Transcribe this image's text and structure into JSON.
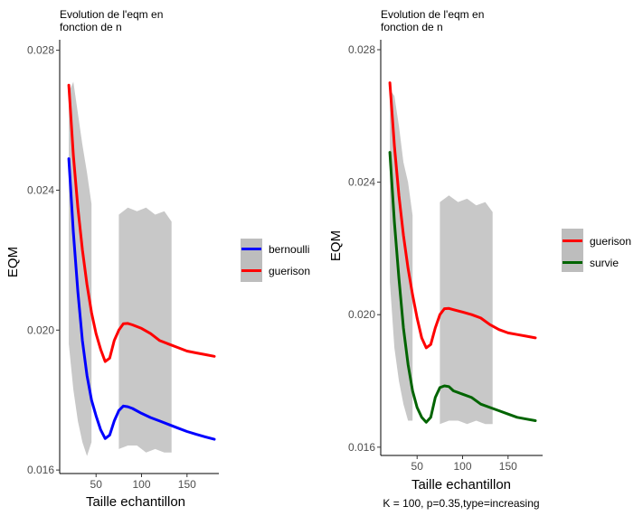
{
  "chart_data": [
    {
      "type": "line",
      "title_lines": [
        "Evolution de l'eqm en",
        "fonction de n"
      ],
      "xlabel": "Taille echantillon",
      "ylabel": "EQM",
      "caption": "",
      "xlim": [
        10,
        185
      ],
      "ylim": [
        0.0159,
        0.0283
      ],
      "x_ticks": [
        50,
        100,
        150
      ],
      "x_tick_labels": [
        "50",
        "100",
        "150"
      ],
      "y_ticks": [
        0.016,
        0.02,
        0.024,
        0.028
      ],
      "y_tick_labels": [
        "0.016",
        "0.020",
        "0.024",
        "0.028"
      ],
      "grid": false,
      "legend_position": "right",
      "series": [
        {
          "name": "bernoulli",
          "color": "#0000ff",
          "x": [
            20,
            25,
            30,
            35,
            40,
            45,
            50,
            55,
            60,
            65,
            70,
            75,
            80,
            85,
            90,
            100,
            110,
            120,
            130,
            140,
            150,
            160,
            170,
            180
          ],
          "y": [
            0.0249,
            0.0228,
            0.0211,
            0.0197,
            0.0187,
            0.018,
            0.01755,
            0.01715,
            0.0169,
            0.017,
            0.0174,
            0.0177,
            0.01783,
            0.01781,
            0.01776,
            0.01762,
            0.0175,
            0.0174,
            0.0173,
            0.0172,
            0.0171,
            0.01702,
            0.01695,
            0.01688
          ]
        },
        {
          "name": "guerison",
          "color": "#ff0000",
          "x": [
            20,
            25,
            30,
            35,
            40,
            45,
            50,
            55,
            60,
            65,
            70,
            75,
            80,
            85,
            90,
            100,
            110,
            120,
            130,
            140,
            150,
            160,
            170,
            180
          ],
          "y": [
            0.027,
            0.025,
            0.0235,
            0.0223,
            0.0213,
            0.0205,
            0.0199,
            0.01945,
            0.0191,
            0.0192,
            0.0197,
            0.02,
            0.02018,
            0.02019,
            0.02015,
            0.02005,
            0.0199,
            0.0197,
            0.0196,
            0.0195,
            0.0194,
            0.01935,
            0.0193,
            0.01925
          ]
        }
      ],
      "confidence_bands": [
        {
          "x": [
            20,
            25,
            30,
            35,
            40,
            45
          ],
          "upper": [
            0.0268,
            0.0271,
            0.0262,
            0.0253,
            0.0245,
            0.0236
          ],
          "lower": [
            0.0196,
            0.0183,
            0.0174,
            0.0168,
            0.0164,
            0.0168
          ]
        },
        {
          "x": [
            75,
            85,
            95,
            105,
            115,
            125,
            133
          ],
          "upper": [
            0.0233,
            0.0235,
            0.0234,
            0.0235,
            0.0233,
            0.0234,
            0.0231
          ],
          "lower": [
            0.0166,
            0.0167,
            0.0167,
            0.0165,
            0.0166,
            0.0165,
            0.0165
          ]
        }
      ]
    },
    {
      "type": "line",
      "title_lines": [
        "Evolution de l'eqm en",
        "fonction de n"
      ],
      "xlabel": "Taille echantillon",
      "ylabel": "EQM",
      "caption": "K = 100, p=0.35,type=increasing",
      "xlim": [
        10,
        188
      ],
      "ylim": [
        0.01575,
        0.0283
      ],
      "x_ticks": [
        50,
        100,
        150
      ],
      "x_tick_labels": [
        "50",
        "100",
        "150"
      ],
      "y_ticks": [
        0.016,
        0.02,
        0.024,
        0.028
      ],
      "y_tick_labels": [
        "0.016",
        "0.020",
        "0.024",
        "0.028"
      ],
      "grid": false,
      "legend_position": "right",
      "series": [
        {
          "name": "guerison",
          "color": "#ff0000",
          "x": [
            20,
            25,
            30,
            35,
            40,
            45,
            50,
            55,
            60,
            65,
            70,
            75,
            80,
            85,
            90,
            100,
            110,
            120,
            130,
            140,
            150,
            160,
            170,
            180
          ],
          "y": [
            0.027,
            0.0251,
            0.0236,
            0.0224,
            0.0214,
            0.0206,
            0.0199,
            0.0193,
            0.019,
            0.0191,
            0.0196,
            0.02,
            0.02018,
            0.02019,
            0.02015,
            0.02008,
            0.02,
            0.0199,
            0.0197,
            0.01955,
            0.01945,
            0.0194,
            0.01935,
            0.0193
          ]
        },
        {
          "name": "survie",
          "color": "#006400",
          "x": [
            20,
            25,
            30,
            35,
            40,
            45,
            50,
            55,
            60,
            65,
            70,
            75,
            80,
            85,
            90,
            100,
            110,
            120,
            130,
            140,
            150,
            160,
            170,
            180
          ],
          "y": [
            0.0249,
            0.0228,
            0.0211,
            0.0196,
            0.0185,
            0.0177,
            0.0172,
            0.0169,
            0.01675,
            0.0169,
            0.0175,
            0.0178,
            0.01785,
            0.01783,
            0.0177,
            0.0176,
            0.0175,
            0.0173,
            0.0172,
            0.0171,
            0.017,
            0.0169,
            0.01685,
            0.0168
          ]
        }
      ],
      "confidence_bands": [
        {
          "x": [
            20,
            25,
            30,
            35,
            40,
            45
          ],
          "upper": [
            0.0268,
            0.0266,
            0.0257,
            0.0246,
            0.024,
            0.023
          ],
          "lower": [
            0.021,
            0.019,
            0.018,
            0.0173,
            0.0168,
            0.0168
          ]
        },
        {
          "x": [
            75,
            85,
            95,
            105,
            115,
            125,
            133
          ],
          "upper": [
            0.0234,
            0.0236,
            0.0234,
            0.0235,
            0.0233,
            0.0234,
            0.0231
          ],
          "lower": [
            0.0167,
            0.0168,
            0.0168,
            0.0167,
            0.0168,
            0.0167,
            0.0167
          ]
        }
      ]
    }
  ]
}
